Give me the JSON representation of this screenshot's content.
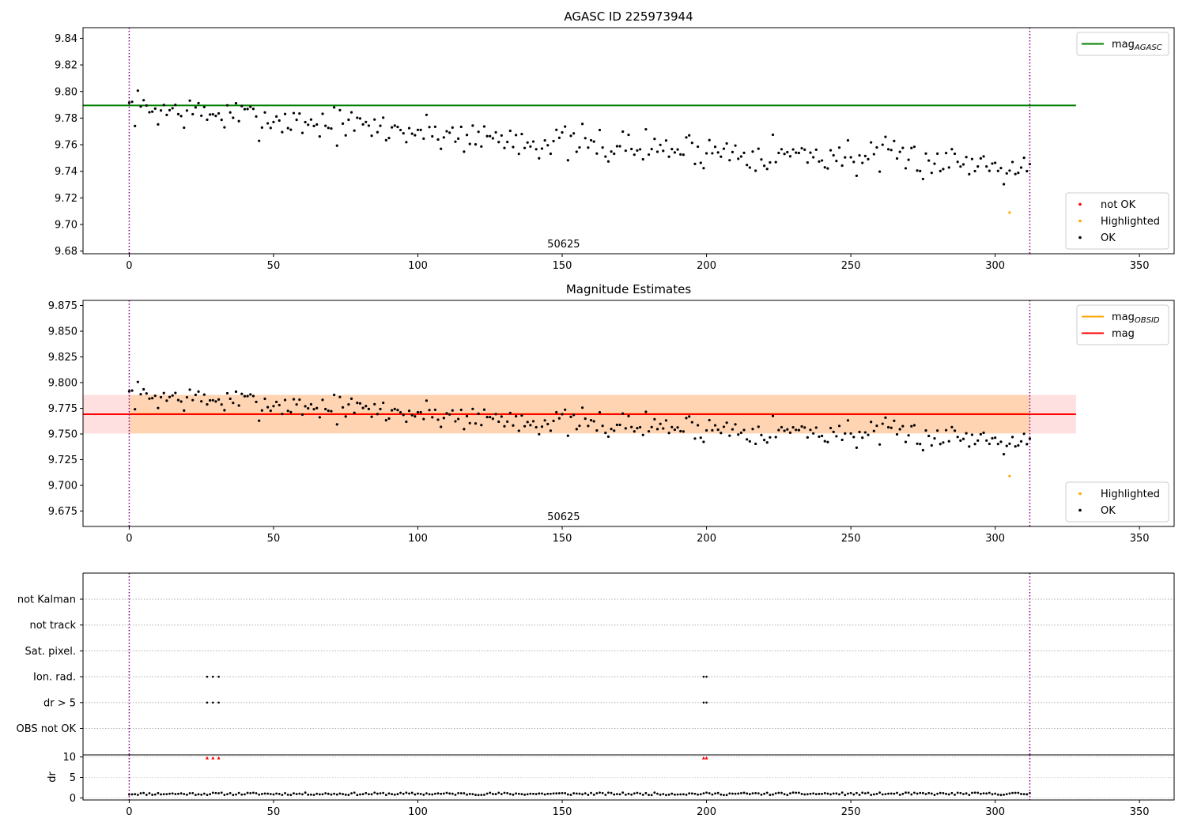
{
  "figure": {
    "background": "#ffffff"
  },
  "chart_data": [
    {
      "type": "scatter",
      "title": "AGASC ID 225973944",
      "xlim": [
        -16,
        362
      ],
      "ylim": [
        9.678,
        9.848
      ],
      "x_ticks": [
        0,
        50,
        100,
        150,
        200,
        250,
        300,
        350
      ],
      "y_ticks": [
        9.68,
        9.7,
        9.72,
        9.74,
        9.76,
        9.78,
        9.8,
        9.82,
        9.84
      ],
      "y_tick_decimals": 2,
      "obsid_lines": [
        0,
        312
      ],
      "obsid_label": {
        "text": "50625",
        "x": 150.5
      },
      "hlines": [
        {
          "name": "mag_AGASC",
          "y": 9.7895,
          "x0": -16,
          "x1": 328,
          "color": "#008000"
        }
      ],
      "series": [
        {
          "name": "OK",
          "color": "#000000",
          "generated": true,
          "x_range": [
            0,
            312
          ],
          "trend": [
            9.788,
            9.76,
            9.745
          ],
          "jitter": 0.02,
          "seed": 7
        },
        {
          "name": "Highlighted",
          "color": "#ffa500",
          "points": [
            [
              305,
              9.709
            ]
          ]
        },
        {
          "name": "not OK",
          "color": "#ff0000",
          "points": []
        }
      ],
      "legend_upper": {
        "position": "top-right",
        "entries": [
          {
            "label": "mag",
            "sub": "AGASC",
            "color": "#008000"
          }
        ]
      },
      "legend_lower": {
        "position": "bottom-right",
        "entries": [
          {
            "label": "not OK",
            "color": "#ff0000"
          },
          {
            "label": "Highlighted",
            "color": "#ffa500"
          },
          {
            "label": "OK",
            "color": "#000000"
          }
        ]
      }
    },
    {
      "type": "scatter",
      "title": "Magnitude Estimates",
      "xlim": [
        -16,
        362
      ],
      "ylim": [
        9.66,
        9.88
      ],
      "x_ticks": [
        0,
        50,
        100,
        150,
        200,
        250,
        300,
        350
      ],
      "y_ticks": [
        9.675,
        9.7,
        9.725,
        9.75,
        9.775,
        9.8,
        9.825,
        9.85,
        9.875
      ],
      "y_tick_decimals": 3,
      "obsid_lines": [
        0,
        312
      ],
      "obsid_label": {
        "text": "50625",
        "x": 150.5
      },
      "bands": [
        {
          "y0": 9.7505,
          "y1": 9.788,
          "x0": -16,
          "x1": 328,
          "color": "#ff0000",
          "opacity": 0.12
        },
        {
          "y0": 9.7505,
          "y1": 9.788,
          "x0": 0,
          "x1": 312,
          "color": "#ffa500",
          "opacity": 0.2
        }
      ],
      "hlines": [
        {
          "name": "mag_OBSID",
          "y": 9.7695,
          "x0": 0,
          "x1": 312,
          "color": "#ffa500"
        },
        {
          "name": "mag",
          "y": 9.7692,
          "x0": -16,
          "x1": 328,
          "color": "#ff0000"
        }
      ],
      "series": [
        {
          "name": "OK",
          "color": "#000000",
          "generated": true,
          "x_range": [
            0,
            312
          ],
          "trend": [
            9.788,
            9.76,
            9.745
          ],
          "jitter": 0.02,
          "seed": 7
        },
        {
          "name": "Highlighted",
          "color": "#ffa500",
          "points": [
            [
              305,
              9.709
            ]
          ]
        }
      ],
      "legend_upper": {
        "position": "top-right",
        "entries": [
          {
            "label": "mag",
            "sub": "OBSID",
            "color": "#ffa500"
          },
          {
            "label": "mag",
            "sub": "",
            "color": "#ff0000"
          }
        ]
      },
      "legend_lower": {
        "position": "bottom-right",
        "entries": [
          {
            "label": "Highlighted",
            "color": "#ffa500"
          },
          {
            "label": "OK",
            "color": "#000000"
          }
        ]
      }
    },
    {
      "type": "scatter",
      "title": "",
      "xlim": [
        -16,
        362
      ],
      "x_ticks": [
        0,
        50,
        100,
        150,
        200,
        250,
        300,
        350
      ],
      "obsid_lines": [
        0,
        312
      ],
      "flag_rows": [
        "not Kalman",
        "not track",
        "Sat. pixel.",
        "Ion. rad.",
        "dr > 5",
        "OBS not OK"
      ],
      "flag_points": {
        "Ion. rad.": [
          27,
          29,
          31,
          199,
          200
        ],
        "dr > 5": [
          27,
          29,
          31,
          199,
          200
        ]
      }
    },
    {
      "type": "scatter",
      "title": "",
      "ylabel": "dr",
      "xlim": [
        -16,
        362
      ],
      "ylim": [
        -0.5,
        10.5
      ],
      "y_ticks": [
        0,
        5,
        10
      ],
      "obsid_lines": [
        0,
        312
      ],
      "series": [
        {
          "name": "dr",
          "color": "#000000",
          "generated": true,
          "x_range": [
            0,
            312
          ],
          "base": 1.0,
          "jitter": 0.6,
          "seed": 11
        },
        {
          "name": "dr high",
          "color": "#ff0000",
          "points": [
            [
              27,
              9.8
            ],
            [
              29,
              9.8
            ],
            [
              31,
              9.8
            ],
            [
              199,
              9.8
            ],
            [
              200,
              9.8
            ]
          ]
        }
      ]
    }
  ]
}
